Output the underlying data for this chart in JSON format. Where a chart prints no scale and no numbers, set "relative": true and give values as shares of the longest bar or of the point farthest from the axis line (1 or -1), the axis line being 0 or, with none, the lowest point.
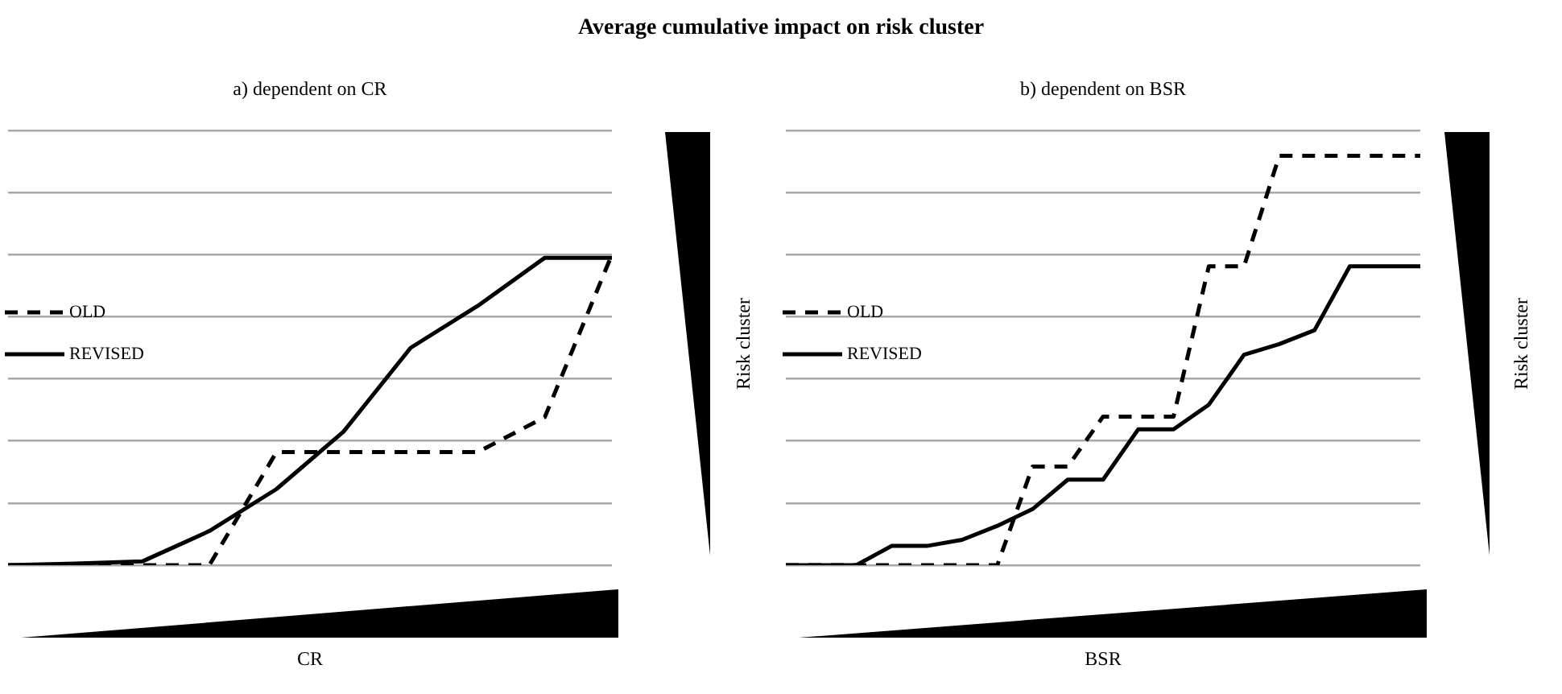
{
  "chart_data": [
    {
      "type": "line",
      "title": "Average cumulative impact on risk cluster",
      "subtitle": "a) dependent on CR",
      "xlabel": "CR",
      "ylabel": "Risk cluster",
      "relative": true,
      "grid": "y",
      "legend": "left",
      "marker": "none",
      "categories": [
        null,
        null,
        null,
        null,
        null,
        null,
        null,
        null,
        null,
        null
      ],
      "series": [
        {
          "name": "OLD",
          "color": "#000000",
          "line_style": "dashed",
          "values": [
            0,
            0,
            0,
            0,
            0.364,
            0.364,
            0.364,
            0.364,
            0.477,
            1
          ]
        },
        {
          "name": "REVISED",
          "color": "#000000",
          "line_style": "solid",
          "values": [
            0,
            0.005,
            0.012,
            0.11,
            0.245,
            0.43,
            0.7,
            0.835,
            0.99,
            0.99
          ]
        }
      ]
    },
    {
      "type": "line",
      "subtitle": "b) dependent on BSR",
      "xlabel": "BSR",
      "ylabel": "Risk cluster",
      "relative": true,
      "grid": "y",
      "legend": "left",
      "marker": "none",
      "categories": [
        null,
        null,
        null,
        null,
        null,
        null,
        null,
        null,
        null,
        null,
        null,
        null,
        null,
        null,
        null,
        null,
        null,
        null,
        null
      ],
      "series": [
        {
          "name": "OLD",
          "color": "#000000",
          "line_style": "dashed",
          "values": [
            0,
            0,
            0,
            0,
            0,
            0,
            0,
            0.241,
            0.241,
            0.363,
            0.363,
            0.363,
            0.73,
            0.73,
            1,
            1,
            1,
            1,
            1
          ]
        },
        {
          "name": "REVISED",
          "color": "#000000",
          "line_style": "solid",
          "values": [
            0,
            0,
            0,
            0.047,
            0.047,
            0.062,
            0.096,
            0.137,
            0.209,
            0.209,
            0.332,
            0.332,
            0.392,
            0.514,
            0.54,
            0.574,
            0.73,
            0.73,
            0.73
          ]
        }
      ]
    }
  ]
}
